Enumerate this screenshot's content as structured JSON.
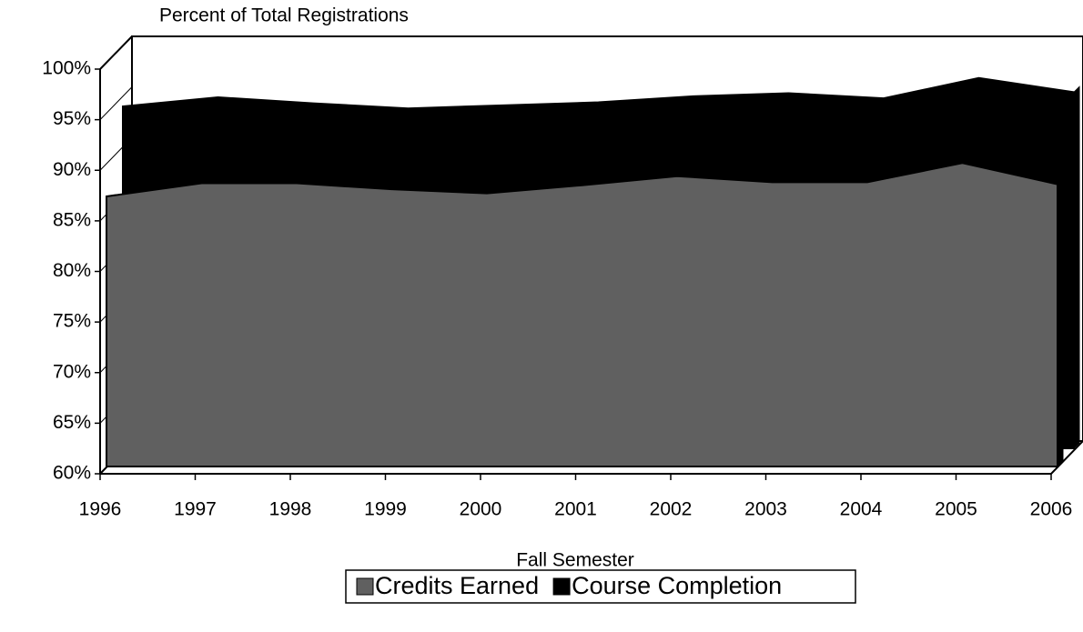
{
  "chart_data": {
    "type": "area3d",
    "title": "Percent of Total Registrations",
    "x_label": "Fall Semester",
    "categories": [
      "1996",
      "1997",
      "1998",
      "1999",
      "2000",
      "2001",
      "2002",
      "2003",
      "2004",
      "2005",
      "2006"
    ],
    "series": [
      {
        "name": "Credits Earned",
        "color": "#606060",
        "values": [
          86.7,
          88.0,
          88.0,
          87.4,
          87.0,
          87.8,
          88.7,
          88.1,
          88.1,
          90.0,
          87.9
        ]
      },
      {
        "name": "Course Completion",
        "color": "#000000",
        "values": [
          93.8,
          94.7,
          94.1,
          93.6,
          93.9,
          94.2,
          94.8,
          95.1,
          94.6,
          96.6,
          95.2
        ]
      }
    ],
    "ylim": [
      60,
      100
    ],
    "yticks": [
      {
        "value": 60,
        "label": "60%"
      },
      {
        "value": 65,
        "label": "65%"
      },
      {
        "value": 70,
        "label": "70%"
      },
      {
        "value": 75,
        "label": "75%"
      },
      {
        "value": 80,
        "label": "80%"
      },
      {
        "value": 85,
        "label": "85%"
      },
      {
        "value": 90,
        "label": "90%"
      },
      {
        "value": 95,
        "label": "95%"
      },
      {
        "value": 100,
        "label": "100%"
      }
    ],
    "legend": "bottom"
  }
}
